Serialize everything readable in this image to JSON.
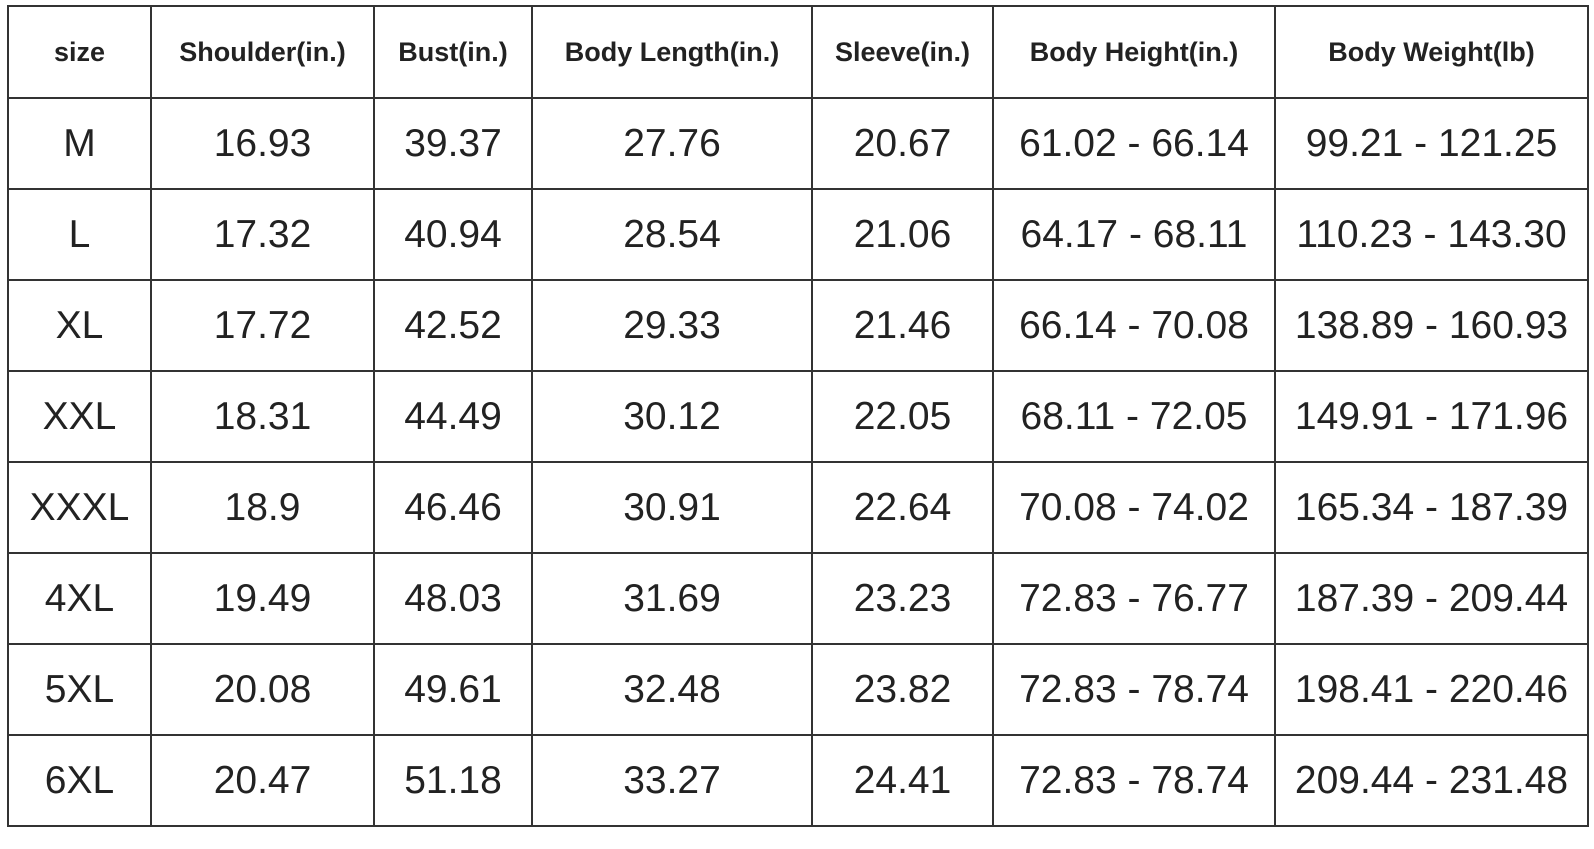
{
  "table": {
    "header": [
      "size",
      "Shoulder(in.)",
      "Bust(in.)",
      "Body Length(in.)",
      "Sleeve(in.)",
      "Body Height(in.)",
      "Body Weight(lb)"
    ],
    "rows": [
      [
        "M",
        "16.93",
        "39.37",
        "27.76",
        "20.67",
        "61.02 - 66.14",
        "99.21 - 121.25"
      ],
      [
        "L",
        "17.32",
        "40.94",
        "28.54",
        "21.06",
        "64.17 - 68.11",
        "110.23 - 143.30"
      ],
      [
        "XL",
        "17.72",
        "42.52",
        "29.33",
        "21.46",
        "66.14 - 70.08",
        "138.89 - 160.93"
      ],
      [
        "XXL",
        "18.31",
        "44.49",
        "30.12",
        "22.05",
        "68.11 - 72.05",
        "149.91 - 171.96"
      ],
      [
        "XXXL",
        "18.9",
        "46.46",
        "30.91",
        "22.64",
        "70.08 - 74.02",
        "165.34 - 187.39"
      ],
      [
        "4XL",
        "19.49",
        "48.03",
        "31.69",
        "23.23",
        "72.83 - 76.77",
        "187.39 - 209.44"
      ],
      [
        "5XL",
        "20.08",
        "49.61",
        "32.48",
        "23.82",
        "72.83 - 78.74",
        "198.41 - 220.46"
      ],
      [
        "6XL",
        "20.47",
        "51.18",
        "33.27",
        "24.41",
        "72.83 - 78.74",
        "209.44 - 231.48"
      ]
    ]
  }
}
